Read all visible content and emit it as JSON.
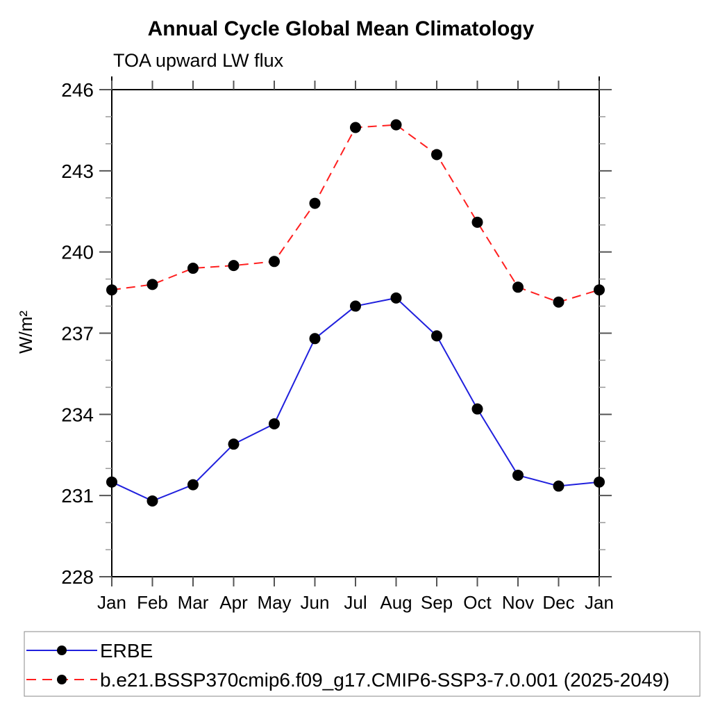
{
  "chart_data": {
    "type": "line",
    "title": "Annual Cycle Global Mean Climatology",
    "subtitle": "TOA upward LW flux",
    "ylabel": "W/m²",
    "xlabel": "",
    "categories": [
      "Jan",
      "Feb",
      "Mar",
      "Apr",
      "May",
      "Jun",
      "Jul",
      "Aug",
      "Sep",
      "Oct",
      "Nov",
      "Dec",
      "Jan"
    ],
    "ylim": [
      228,
      246
    ],
    "ytick_major": [
      228,
      231,
      234,
      237,
      240,
      243,
      246
    ],
    "ytick_minor_step": 1,
    "grid": "off",
    "legend_position": "bottom",
    "legend_border_color": "#888888",
    "marker": "filled-circle",
    "marker_color": "#000000",
    "axis_color": "#000000",
    "series": [
      {
        "name": "ERBE",
        "style": "solid",
        "color": "#2020dd",
        "values": [
          231.5,
          230.8,
          231.4,
          232.9,
          233.65,
          236.8,
          238.0,
          238.3,
          236.9,
          234.2,
          231.75,
          231.35,
          231.5
        ]
      },
      {
        "name": "b.e21.BSSP370cmip6.f09_g17.CMIP6-SSP3-7.0.001 (2025-2049)",
        "style": "dashed",
        "color": "#ff1f1f",
        "values": [
          238.6,
          238.8,
          239.4,
          239.5,
          239.65,
          241.8,
          244.6,
          244.7,
          243.6,
          241.1,
          238.7,
          238.15,
          238.6
        ]
      }
    ]
  }
}
